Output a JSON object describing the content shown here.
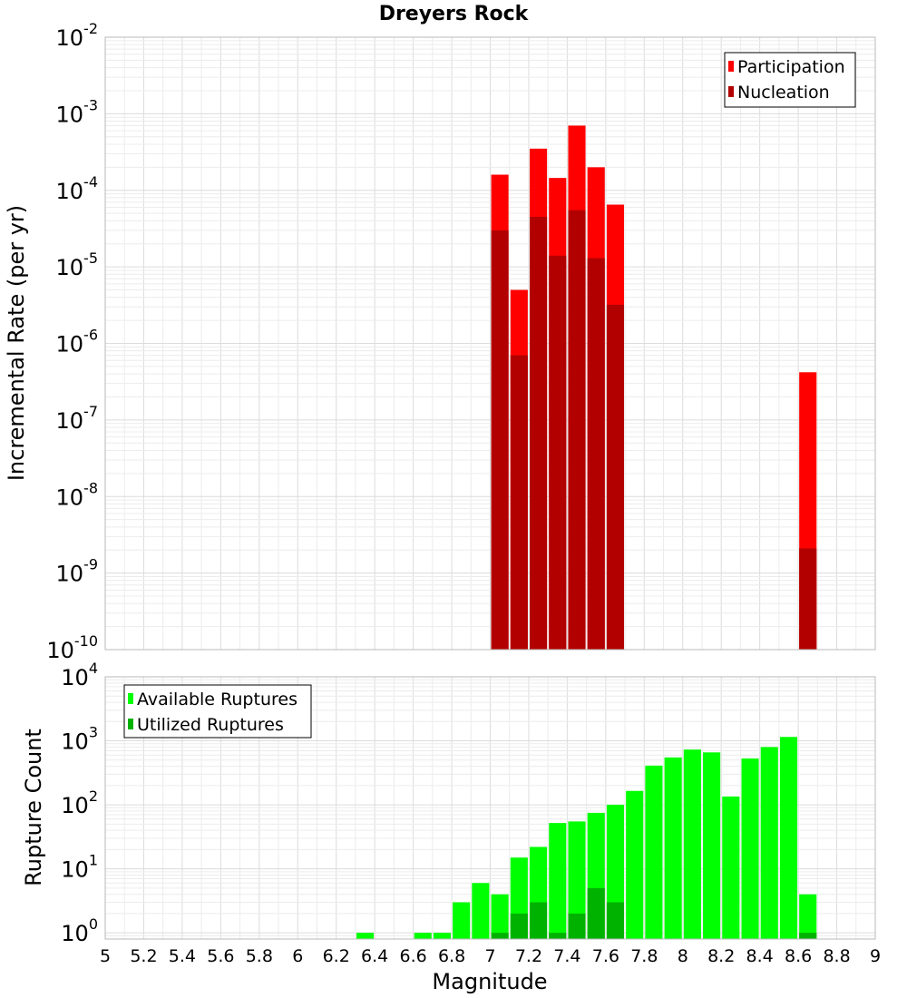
{
  "chart_data": [
    {
      "type": "bar",
      "title": "Dreyers Rock",
      "xlabel": "",
      "ylabel": "Incremental Rate (per yr)",
      "yscale": "log",
      "ylim": [
        1e-10,
        0.01
      ],
      "xlim": [
        5,
        9
      ],
      "grid": true,
      "legend_position": "top-right",
      "bar_width": 0.09,
      "series": [
        {
          "name": "Participation",
          "color": "#ff0000",
          "points": [
            {
              "x": 7.05,
              "y": 0.00016
            },
            {
              "x": 7.15,
              "y": 5e-06
            },
            {
              "x": 7.25,
              "y": 0.00035
            },
            {
              "x": 7.35,
              "y": 0.000145
            },
            {
              "x": 7.45,
              "y": 0.0007
            },
            {
              "x": 7.55,
              "y": 0.0002
            },
            {
              "x": 7.65,
              "y": 6.5e-05
            },
            {
              "x": 8.65,
              "y": 4.2e-07
            }
          ]
        },
        {
          "name": "Nucleation",
          "color": "#b20000",
          "points": [
            {
              "x": 7.05,
              "y": 3e-05
            },
            {
              "x": 7.15,
              "y": 7e-07
            },
            {
              "x": 7.25,
              "y": 4.5e-05
            },
            {
              "x": 7.35,
              "y": 1.4e-05
            },
            {
              "x": 7.45,
              "y": 5.5e-05
            },
            {
              "x": 7.55,
              "y": 1.3e-05
            },
            {
              "x": 7.65,
              "y": 3.2e-06
            },
            {
              "x": 8.65,
              "y": 2.1e-09
            }
          ]
        }
      ],
      "xticks": [],
      "yticks": [
        {
          "exp": "-2",
          "v": 0.01
        },
        {
          "exp": "-3",
          "v": 0.001
        },
        {
          "exp": "-4",
          "v": 0.0001
        },
        {
          "exp": "-5",
          "v": 1e-05
        },
        {
          "exp": "-6",
          "v": 1e-06
        },
        {
          "exp": "-7",
          "v": 1e-07
        },
        {
          "exp": "-8",
          "v": 1e-08
        },
        {
          "exp": "-9",
          "v": 1e-09
        },
        {
          "exp": "-10",
          "v": 1e-10
        }
      ]
    },
    {
      "type": "bar",
      "title": "",
      "xlabel": "Magnitude",
      "ylabel": "Rupture Count",
      "yscale": "log",
      "ylim": [
        0.8,
        10000.0
      ],
      "xlim": [
        5,
        9
      ],
      "grid": true,
      "legend_position": "top-left",
      "bar_width": 0.09,
      "series": [
        {
          "name": "Available Ruptures",
          "color": "#00ff00",
          "points": [
            {
              "x": 6.35,
              "y": 1
            },
            {
              "x": 6.65,
              "y": 1
            },
            {
              "x": 6.75,
              "y": 1
            },
            {
              "x": 6.85,
              "y": 3
            },
            {
              "x": 6.95,
              "y": 6
            },
            {
              "x": 7.05,
              "y": 4
            },
            {
              "x": 7.15,
              "y": 15
            },
            {
              "x": 7.25,
              "y": 22
            },
            {
              "x": 7.35,
              "y": 52
            },
            {
              "x": 7.45,
              "y": 55
            },
            {
              "x": 7.55,
              "y": 75
            },
            {
              "x": 7.65,
              "y": 100
            },
            {
              "x": 7.75,
              "y": 165
            },
            {
              "x": 7.85,
              "y": 410
            },
            {
              "x": 7.95,
              "y": 550
            },
            {
              "x": 8.05,
              "y": 730
            },
            {
              "x": 8.15,
              "y": 660
            },
            {
              "x": 8.25,
              "y": 135
            },
            {
              "x": 8.35,
              "y": 530
            },
            {
              "x": 8.45,
              "y": 800
            },
            {
              "x": 8.55,
              "y": 1150
            },
            {
              "x": 8.65,
              "y": 4
            }
          ]
        },
        {
          "name": "Utilized Ruptures",
          "color": "#00b200",
          "points": [
            {
              "x": 7.05,
              "y": 1
            },
            {
              "x": 7.15,
              "y": 2
            },
            {
              "x": 7.25,
              "y": 3
            },
            {
              "x": 7.35,
              "y": 1
            },
            {
              "x": 7.45,
              "y": 2
            },
            {
              "x": 7.55,
              "y": 5
            },
            {
              "x": 7.65,
              "y": 3
            },
            {
              "x": 8.65,
              "y": 1
            }
          ]
        }
      ],
      "xticks": [
        "5",
        "5.2",
        "5.4",
        "5.6",
        "5.8",
        "6",
        "6.2",
        "6.4",
        "6.6",
        "6.8",
        "7",
        "7.2",
        "7.4",
        "7.6",
        "7.8",
        "8",
        "8.2",
        "8.4",
        "8.6",
        "8.8",
        "9"
      ],
      "yticks": [
        {
          "exp": "4",
          "v": 10000.0
        },
        {
          "exp": "3",
          "v": 1000.0
        },
        {
          "exp": "2",
          "v": 100.0
        },
        {
          "exp": "1",
          "v": 10.0
        },
        {
          "exp": "0",
          "v": 1
        }
      ]
    }
  ]
}
